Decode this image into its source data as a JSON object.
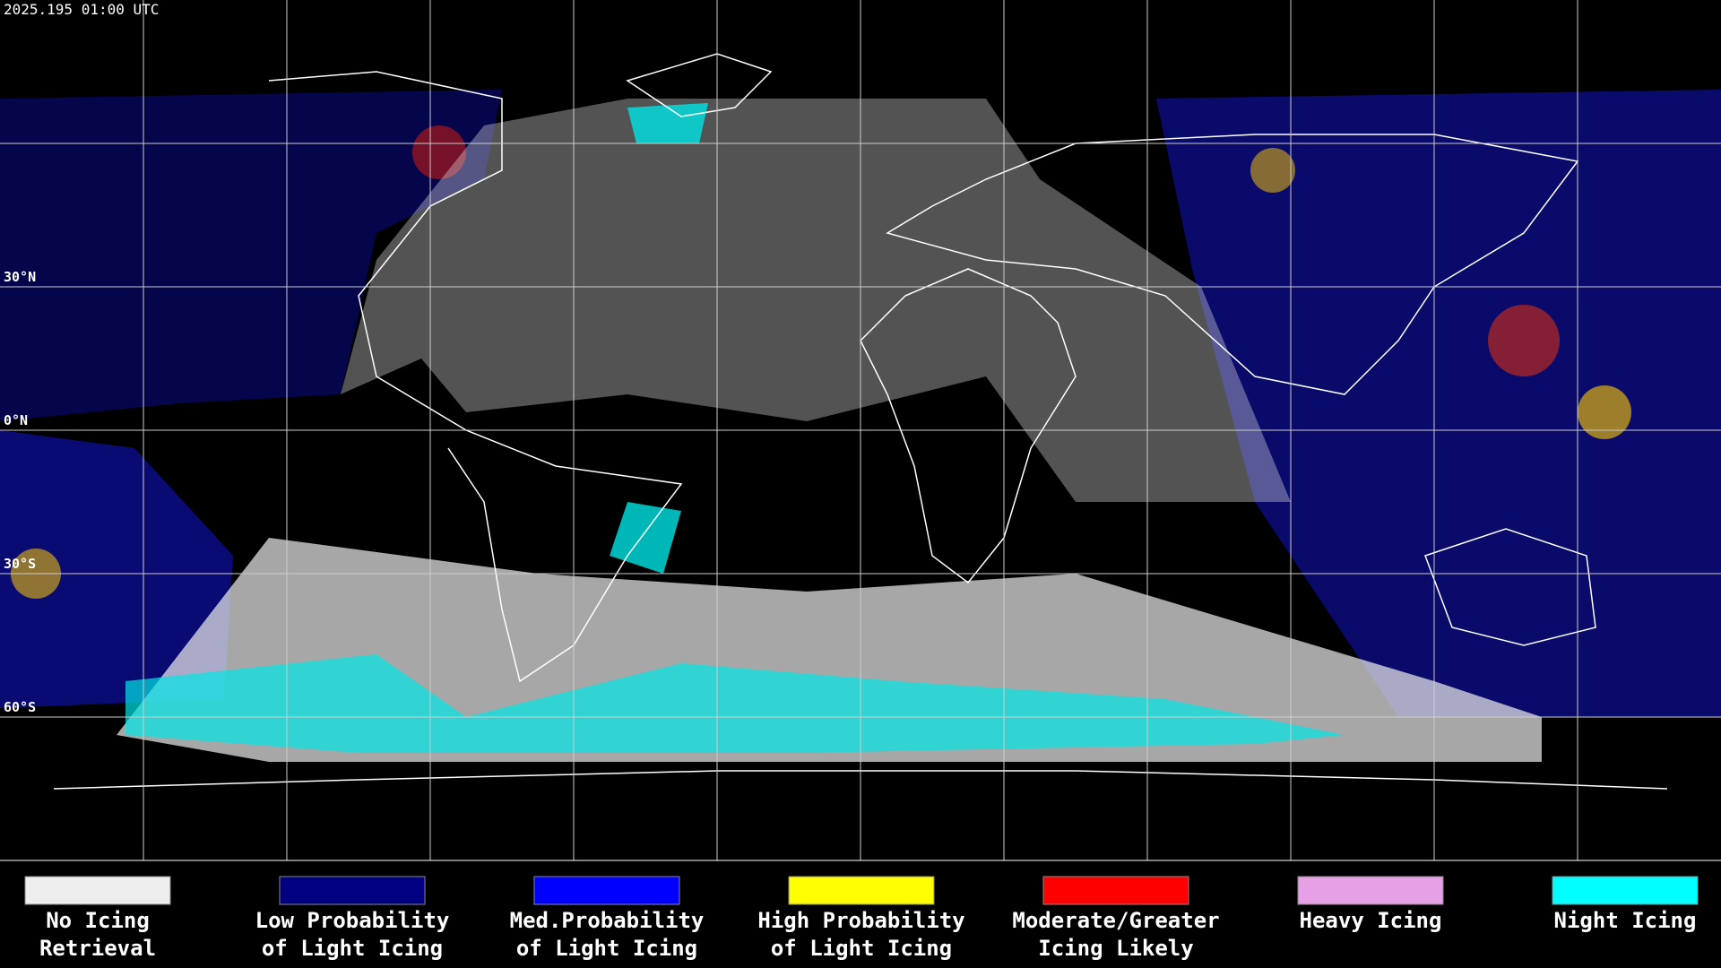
{
  "timestamp": "2025.195 01:00 UTC",
  "latitude_labels": [
    {
      "label": "30°N",
      "lat": 30
    },
    {
      "label": "0°N",
      "lat": 0
    },
    {
      "label": "30°S",
      "lat": -30
    },
    {
      "label": "60°S",
      "lat": -60
    }
  ],
  "legend": [
    {
      "lines": [
        "No Icing",
        "Retrieval"
      ],
      "color": "#eeeeee"
    },
    {
      "lines": [
        "Low Probability",
        "of Light Icing"
      ],
      "color": "#000080"
    },
    {
      "lines": [
        "Med.Probability",
        "of Light Icing"
      ],
      "color": "#0000ff"
    },
    {
      "lines": [
        "High Probability",
        "of Light Icing"
      ],
      "color": "#ffff00"
    },
    {
      "lines": [
        "Moderate/Greater",
        "Icing Likely"
      ],
      "color": "#ff0000"
    },
    {
      "lines": [
        "Heavy Icing"
      ],
      "color": "#e6a0e6"
    },
    {
      "lines": [
        "Night Icing"
      ],
      "color": "#00ffff"
    }
  ]
}
